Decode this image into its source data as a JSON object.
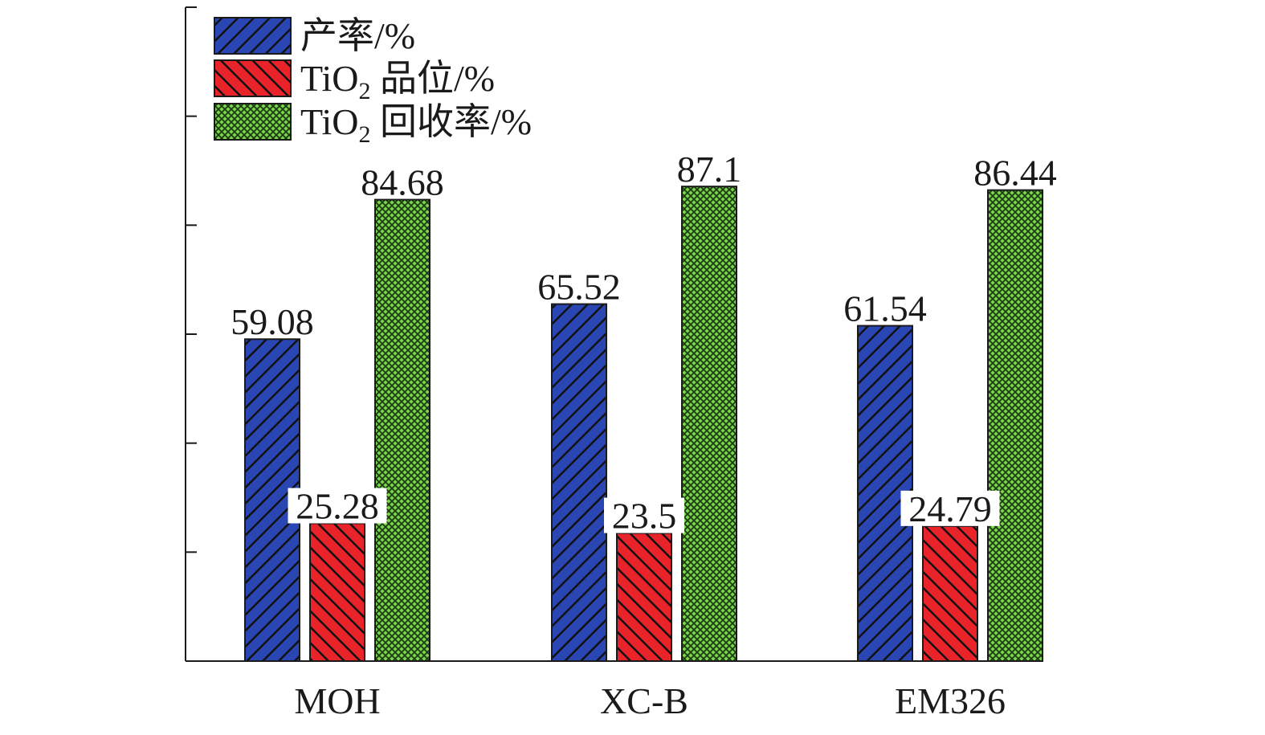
{
  "chart_data": {
    "type": "bar",
    "categories": [
      "MOH",
      "XC-B",
      "EM326"
    ],
    "series": [
      {
        "name": "产率/%",
        "values": [
          59.08,
          65.52,
          61.54
        ],
        "color": "#2946b3",
        "pattern": "diagonal-forward"
      },
      {
        "name": "TiO2 品位/%",
        "values": [
          25.28,
          23.5,
          24.79
        ],
        "color": "#e8232a",
        "pattern": "diagonal-backward"
      },
      {
        "name": "TiO2 回收率/%",
        "values": [
          84.68,
          87.1,
          86.44
        ],
        "color": "#3a8f2e",
        "pattern": "crosshatch"
      }
    ],
    "value_labels": [
      [
        "59.08",
        "65.52",
        "61.54"
      ],
      [
        "25.28",
        "23.5",
        "24.79"
      ],
      [
        "84.68",
        "87.1",
        "86.44"
      ]
    ],
    "legend": [
      {
        "main": "产率/%",
        "prefix": "",
        "sub": "",
        "suffix": "产率/%"
      },
      {
        "main": "TiO2 品位/%",
        "prefix": "TiO",
        "sub": "2",
        "suffix": " 品位/%"
      },
      {
        "main": "TiO2 回收率/%",
        "prefix": "TiO",
        "sub": "2",
        "suffix": " 回收率/%"
      }
    ],
    "legend_position": "top-left",
    "ylim": [
      0,
      120
    ],
    "y_ticks": [
      0,
      20,
      40,
      60,
      80,
      100,
      120
    ],
    "y_tick_labels_shown": false,
    "grid": false,
    "title": "",
    "xlabel": "",
    "ylabel": ""
  }
}
